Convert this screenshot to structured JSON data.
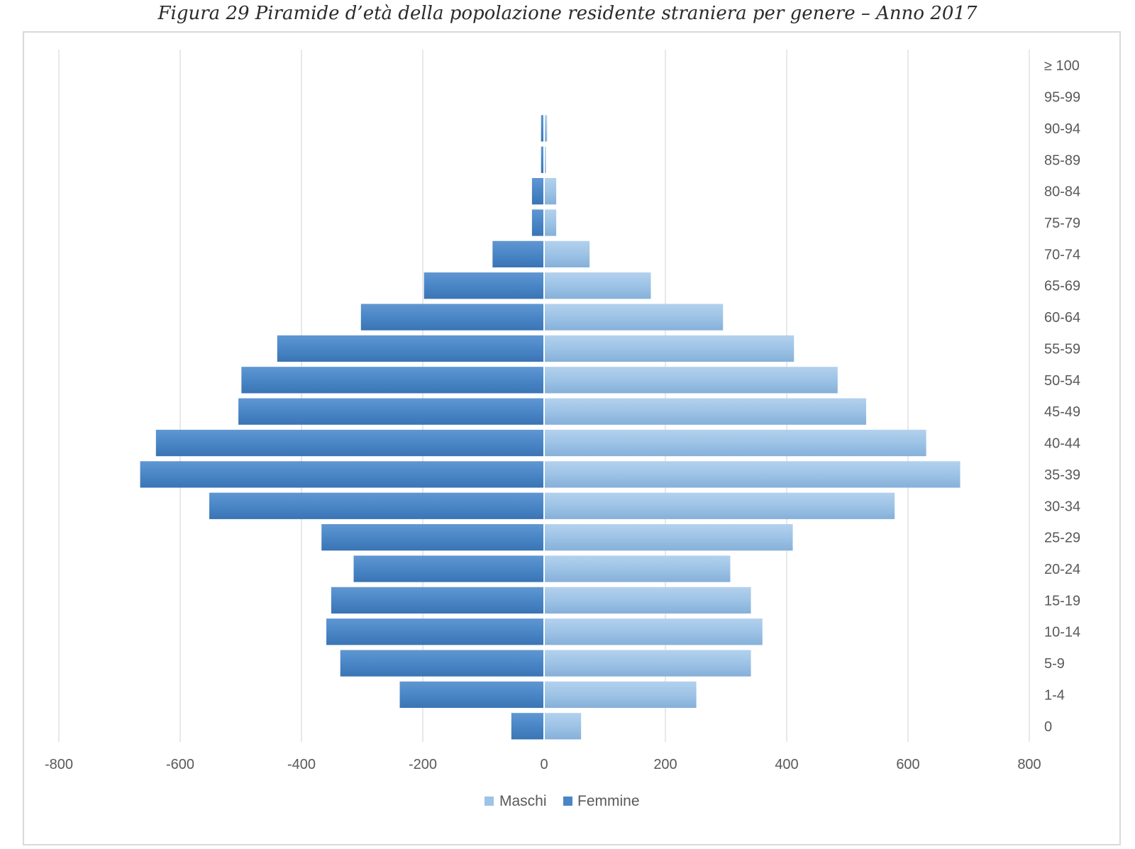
{
  "caption": "Figura 29 Piramide d’età della popolazione residente straniera per genere – Anno 2017",
  "colors": {
    "maschi": "#9dc3e6",
    "femmine": "#4a86c6",
    "grid": "#d9d9d9"
  },
  "chart_data": {
    "type": "bar",
    "orientation": "horizontal",
    "title": "",
    "xlim": [
      -800,
      800
    ],
    "x_ticks": [
      "-800",
      "-600",
      "-400",
      "-200",
      "0",
      "200",
      "400",
      "600",
      "800"
    ],
    "x_tick_values": [
      -800,
      -600,
      -400,
      -200,
      0,
      200,
      400,
      600,
      800
    ],
    "grid": true,
    "legend_position": "bottom",
    "categories": [
      "≥ 100",
      "95-99",
      "90-94",
      "85-89",
      "80-84",
      "75-79",
      "70-74",
      "65-69",
      "60-64",
      "55-59",
      "50-54",
      "45-49",
      "40-44",
      "35-39",
      "30-34",
      "25-29",
      "20-24",
      "15-19",
      "10-14",
      "5-9",
      "1-4",
      "0"
    ],
    "series": [
      {
        "name": "Maschi",
        "values": [
          0,
          0,
          5,
          3,
          20,
          20,
          75,
          176,
          295,
          412,
          484,
          531,
          630,
          686,
          578,
          410,
          307,
          341,
          360,
          341,
          251,
          61
        ]
      },
      {
        "name": "Femmine",
        "values": [
          0,
          0,
          -5,
          -5,
          -20,
          -20,
          -85,
          -198,
          -302,
          -440,
          -499,
          -504,
          -640,
          -666,
          -552,
          -367,
          -314,
          -351,
          -359,
          -336,
          -238,
          -54
        ]
      }
    ]
  }
}
